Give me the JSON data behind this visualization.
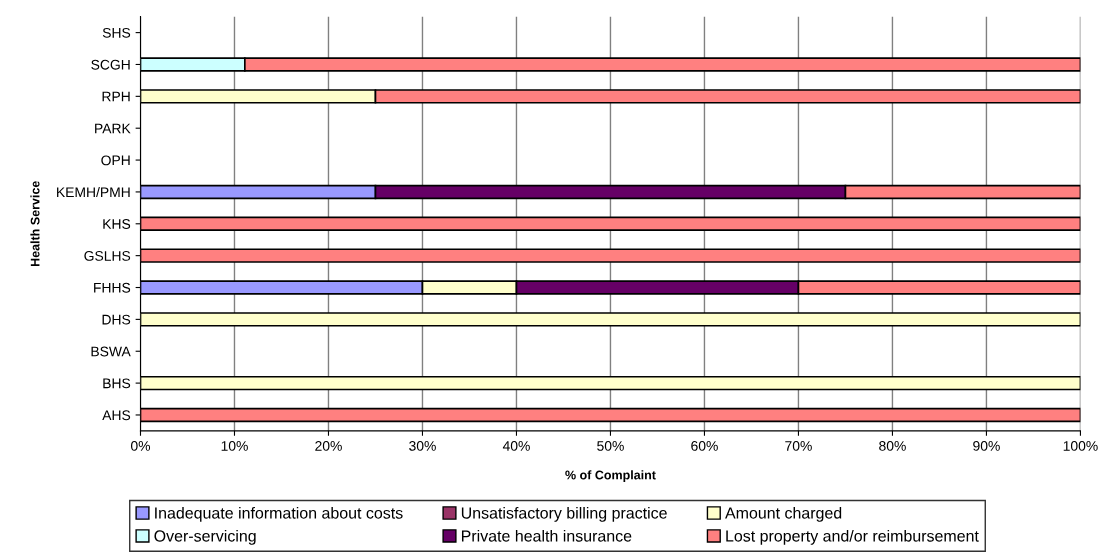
{
  "chart_data": {
    "type": "bar",
    "orientation": "horizontal",
    "stacked": true,
    "xlabel": "% of Complaint",
    "ylabel": "Health Service",
    "categories": [
      "SHS",
      "SCGH",
      "RPH",
      "PARK",
      "OPH",
      "KEMH/PMH",
      "KHS",
      "GSLHS",
      "FHHS",
      "DHS",
      "BSWA",
      "BHS",
      "AHS"
    ],
    "series": [
      {
        "name": "Inadequate information about costs",
        "color": "#9999ff",
        "values": [
          null,
          null,
          null,
          null,
          null,
          25,
          null,
          null,
          30,
          null,
          null,
          null,
          null
        ]
      },
      {
        "name": "Unsatisfactory billing practice",
        "color": "#993366",
        "values": [
          null,
          null,
          null,
          null,
          null,
          null,
          null,
          null,
          null,
          null,
          null,
          null,
          null
        ]
      },
      {
        "name": "Amount charged",
        "color": "#ffffcc",
        "values": [
          null,
          null,
          25,
          null,
          null,
          null,
          null,
          null,
          10,
          100,
          null,
          100,
          null
        ]
      },
      {
        "name": "Over-servicing",
        "color": "#ccffff",
        "values": [
          null,
          11.1,
          null,
          null,
          null,
          null,
          null,
          null,
          null,
          null,
          null,
          null,
          null
        ]
      },
      {
        "name": "Private health insurance",
        "color": "#660066",
        "values": [
          null,
          null,
          null,
          null,
          null,
          50,
          null,
          null,
          30,
          null,
          null,
          null,
          null
        ]
      },
      {
        "name": "Lost property and/or reimbursement",
        "color": "#ff8080",
        "values": [
          null,
          88.9,
          75,
          null,
          null,
          25,
          100,
          100,
          30,
          null,
          null,
          null,
          100
        ]
      }
    ],
    "xlim": [
      0,
      100
    ],
    "xticks": [
      {
        "value": 0,
        "label": "0%"
      },
      {
        "value": 10,
        "label": "10%"
      },
      {
        "value": 20,
        "label": "20%"
      },
      {
        "value": 30,
        "label": "30%"
      },
      {
        "value": 40,
        "label": "40%"
      },
      {
        "value": 50,
        "label": "50%"
      },
      {
        "value": 60,
        "label": "60%"
      },
      {
        "value": 70,
        "label": "70%"
      },
      {
        "value": 80,
        "label": "80%"
      },
      {
        "value": 90,
        "label": "90%"
      },
      {
        "value": 100,
        "label": "100%"
      }
    ],
    "grid": "x",
    "legend": "bottom"
  }
}
